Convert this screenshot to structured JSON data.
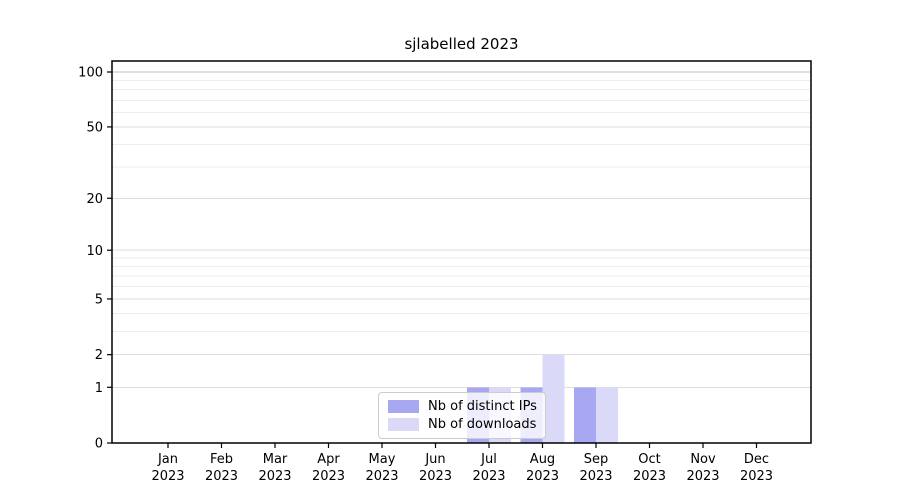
{
  "chart": {
    "title": "sjlabelled 2023"
  },
  "chart_data": {
    "type": "bar",
    "title": "sjlabelled 2023",
    "xlabel": "",
    "ylabel": "",
    "categories": [
      "Jan 2023",
      "Feb 2023",
      "Mar 2023",
      "Apr 2023",
      "May 2023",
      "Jun 2023",
      "Jul 2023",
      "Aug 2023",
      "Sep 2023",
      "Oct 2023",
      "Nov 2023",
      "Dec 2023"
    ],
    "series": [
      {
        "name": "Nb of distinct IPs",
        "color": "#a7a7f2",
        "values": [
          0,
          0,
          0,
          0,
          0,
          0,
          1,
          1,
          1,
          0,
          0,
          0
        ]
      },
      {
        "name": "Nb of downloads",
        "color": "#dadaf8",
        "values": [
          0,
          0,
          0,
          0,
          0,
          0,
          1,
          2,
          1,
          0,
          0,
          0
        ]
      }
    ],
    "yticks": [
      0,
      1,
      2,
      5,
      10,
      20,
      50,
      100
    ],
    "ylim": [
      0,
      116
    ],
    "scale": "log1p",
    "grid": "horizontal",
    "legend_position": "inside-bottom-center",
    "colors": {
      "frame": "#000000",
      "grid_minor": "#eeeeee",
      "grid_major": "#dddddd",
      "grid_top": "#c2c2c2",
      "tick_text": "#000000"
    }
  }
}
